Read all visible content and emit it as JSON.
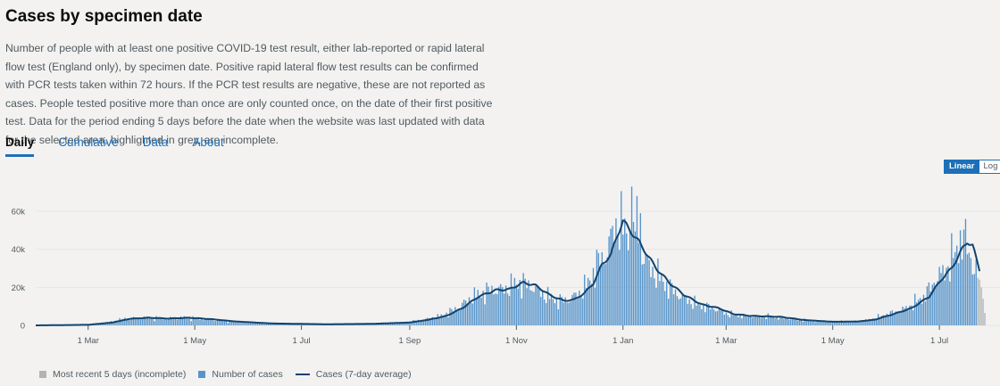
{
  "header": {
    "title": "Cases by specimen date",
    "description": "Number of people with at least one positive COVID-19 test result, either lab-reported or rapid lateral flow test (England only), by specimen date. Positive rapid lateral flow test results can be confirmed with PCR tests taken within 72 hours. If the PCR test results are negative, these are not reported as cases. People tested positive more than once are only counted once, on the date of their first positive test. Data for the period ending 5 days before the date when the website was last updated with data for the selected area, highlighted in grey, are incomplete."
  },
  "tabs": [
    {
      "label": "Daily",
      "active": true
    },
    {
      "label": "Cumulative",
      "active": false
    },
    {
      "label": "Data",
      "active": false
    },
    {
      "label": "About",
      "active": false
    }
  ],
  "scale_toggle": {
    "linear_label": "Linear",
    "log_label": "Log",
    "selected": "Linear"
  },
  "colors": {
    "bar": "#5694ca",
    "line": "#12436d",
    "incomplete": "#b1b4b6",
    "grid": "#e6e6e6",
    "axis": "#505a5f"
  },
  "chart_data": {
    "type": "bar",
    "x_start": "2020-01-31",
    "x_end": "2021-07-27",
    "ylim": [
      0,
      75000
    ],
    "y_ticks": [
      0,
      20000,
      40000,
      60000
    ],
    "y_tick_labels": [
      "0",
      "20k",
      "40k",
      "60k"
    ],
    "x_ticks": [
      {
        "date": "2020-03-01",
        "label": "1 Mar"
      },
      {
        "date": "2020-05-01",
        "label": "1 May"
      },
      {
        "date": "2020-07-01",
        "label": "1 Jul"
      },
      {
        "date": "2020-09-01",
        "label": "1 Sep"
      },
      {
        "date": "2020-11-01",
        "label": "1 Nov"
      },
      {
        "date": "2021-01-01",
        "label": "1 Jan"
      },
      {
        "date": "2021-03-01",
        "label": "1 Mar"
      },
      {
        "date": "2021-05-01",
        "label": "1 May"
      },
      {
        "date": "2021-07-01",
        "label": "1 Jul"
      }
    ],
    "cases_7day_average_anchors": [
      [
        "2020-01-31",
        0
      ],
      [
        "2020-03-01",
        300
      ],
      [
        "2020-03-15",
        1500
      ],
      [
        "2020-03-25",
        3500
      ],
      [
        "2020-04-05",
        4000
      ],
      [
        "2020-04-15",
        3600
      ],
      [
        "2020-04-28",
        4000
      ],
      [
        "2020-05-10",
        3300
      ],
      [
        "2020-05-25",
        2000
      ],
      [
        "2020-06-15",
        1000
      ],
      [
        "2020-07-15",
        600
      ],
      [
        "2020-08-10",
        800
      ],
      [
        "2020-09-01",
        1500
      ],
      [
        "2020-09-12",
        3000
      ],
      [
        "2020-09-22",
        5000
      ],
      [
        "2020-10-01",
        9000
      ],
      [
        "2020-10-10",
        15000
      ],
      [
        "2020-10-20",
        18500
      ],
      [
        "2020-10-28",
        19000
      ],
      [
        "2020-11-05",
        22500
      ],
      [
        "2020-11-12",
        21000
      ],
      [
        "2020-11-20",
        16000
      ],
      [
        "2020-11-28",
        13000
      ],
      [
        "2020-12-04",
        13500
      ],
      [
        "2020-12-10",
        17000
      ],
      [
        "2020-12-15",
        22000
      ],
      [
        "2020-12-20",
        32000
      ],
      [
        "2020-12-25",
        37000
      ],
      [
        "2020-12-29",
        48000
      ],
      [
        "2021-01-01",
        55000
      ],
      [
        "2021-01-05",
        50000
      ],
      [
        "2021-01-10",
        44000
      ],
      [
        "2021-01-15",
        37000
      ],
      [
        "2021-01-20",
        30000
      ],
      [
        "2021-01-28",
        22000
      ],
      [
        "2021-02-05",
        16000
      ],
      [
        "2021-02-15",
        11000
      ],
      [
        "2021-02-25",
        9000
      ],
      [
        "2021-03-05",
        6000
      ],
      [
        "2021-03-15",
        5000
      ],
      [
        "2021-04-01",
        4500
      ],
      [
        "2021-04-15",
        2800
      ],
      [
        "2021-05-01",
        1900
      ],
      [
        "2021-05-15",
        2000
      ],
      [
        "2021-05-25",
        3000
      ],
      [
        "2021-06-05",
        6000
      ],
      [
        "2021-06-15",
        9000
      ],
      [
        "2021-06-25",
        15000
      ],
      [
        "2021-07-02",
        24000
      ],
      [
        "2021-07-08",
        30000
      ],
      [
        "2021-07-14",
        40000
      ],
      [
        "2021-07-17",
        44000
      ],
      [
        "2021-07-20",
        42000
      ],
      [
        "2021-07-24",
        29000
      ]
    ],
    "daily_spikes": [
      [
        "2021-01-06",
        73000
      ],
      [
        "2021-01-09",
        68000
      ],
      [
        "2021-01-11",
        59000
      ],
      [
        "2021-07-16",
        56000
      ],
      [
        "2021-07-13",
        50000
      ],
      [
        "2021-11-04",
        0
      ]
    ],
    "incomplete_from": "2021-07-23",
    "incomplete_values": [
      25000,
      24000,
      20000,
      14000,
      6500
    ],
    "series": [
      {
        "name": "Most recent 5 days (incomplete)",
        "kind": "bar"
      },
      {
        "name": "Number of cases",
        "kind": "bar"
      },
      {
        "name": "Cases (7-day average)",
        "kind": "line"
      }
    ]
  }
}
